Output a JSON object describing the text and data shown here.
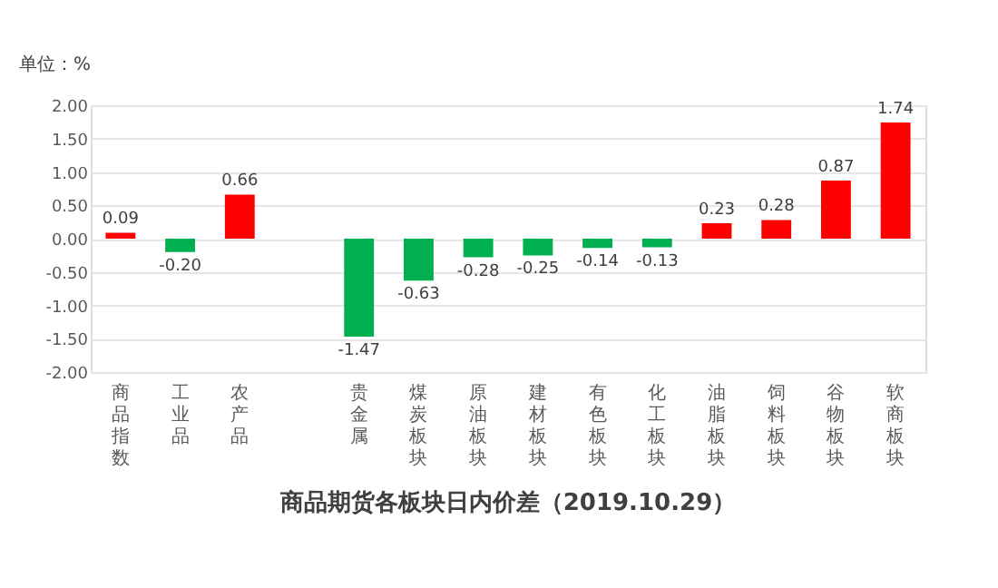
{
  "chart_data": {
    "type": "bar",
    "title": "商品期货各板块日内价差（2019.10.29）",
    "ylabel": "单位：%",
    "categories": [
      "商品指数",
      "工业品",
      "农产品",
      null,
      "贵金属",
      "煤炭板块",
      "原油板块",
      "建材板块",
      "有色板块",
      "化工板块",
      "油脂板块",
      "饲料板块",
      "谷物板块",
      "软商板块"
    ],
    "values": [
      0.09,
      -0.2,
      0.66,
      null,
      -1.47,
      -0.63,
      -0.28,
      -0.25,
      -0.14,
      -0.13,
      0.23,
      0.28,
      0.87,
      1.74
    ],
    "colors": [
      "#ff0000",
      "#00b050",
      "#ff0000",
      null,
      "#00b050",
      "#00b050",
      "#00b050",
      "#00b050",
      "#00b050",
      "#00b050",
      "#ff0000",
      "#ff0000",
      "#ff0000",
      "#ff0000"
    ],
    "ylim": [
      -2,
      2
    ],
    "yticks": [
      {
        "value": -2,
        "label": "-2.00"
      },
      {
        "value": -1.5,
        "label": "-1.50"
      },
      {
        "value": -1,
        "label": "-1.00"
      },
      {
        "value": -0.5,
        "label": "-0.50"
      },
      {
        "value": 0,
        "label": "0.00"
      },
      {
        "value": 0.5,
        "label": "0.50"
      },
      {
        "value": 1,
        "label": "1.00"
      },
      {
        "value": 1.5,
        "label": "1.50"
      },
      {
        "value": 2,
        "label": "2.00"
      }
    ],
    "value_labels": [
      "0.09",
      "-0.20",
      "0.66",
      null,
      "-1.47",
      "-0.63",
      "-0.28",
      "-0.25",
      "-0.14",
      "-0.13",
      "0.23",
      "0.28",
      "0.87",
      "1.74"
    ],
    "data_labels": true,
    "grid": "y"
  }
}
